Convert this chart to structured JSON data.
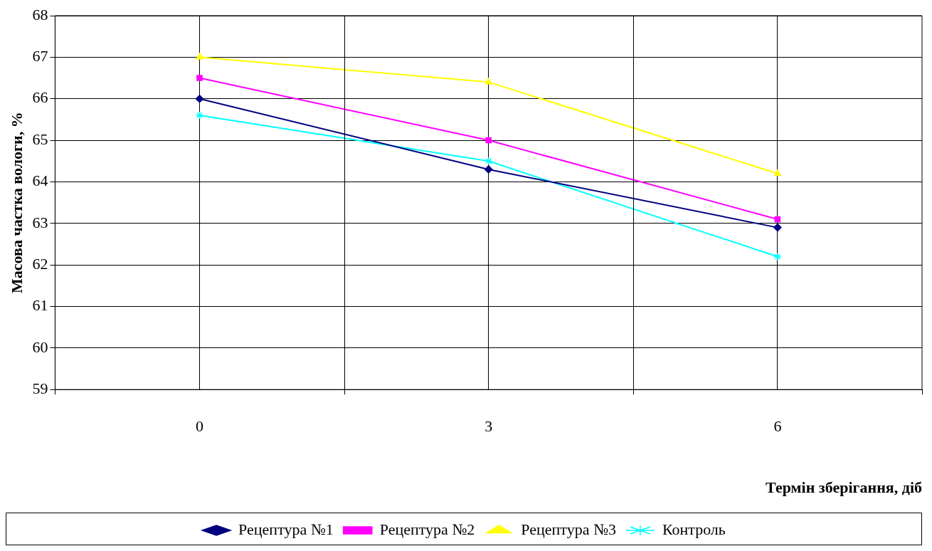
{
  "chart_data": {
    "type": "line",
    "xlabel": "Термін зберігання, діб",
    "ylabel": "Масова частка вологи, %",
    "categories": [
      "0",
      "3",
      "6"
    ],
    "series": [
      {
        "name": "Рецептура №1",
        "color": "#000080",
        "marker": "diamond",
        "values": [
          66.0,
          64.3,
          62.9
        ]
      },
      {
        "name": "Рецептура №2",
        "color": "#ff00ff",
        "marker": "square",
        "values": [
          66.5,
          65.0,
          63.1
        ]
      },
      {
        "name": "Рецептура №3",
        "color": "#ffff00",
        "marker": "triangle",
        "values": [
          67.0,
          66.4,
          64.2
        ]
      },
      {
        "name": "Контроль",
        "color": "#00ffff",
        "marker": "cross",
        "values": [
          65.6,
          64.5,
          62.2
        ]
      }
    ],
    "ylim": [
      59,
      68
    ],
    "yticks": [
      59,
      60,
      61,
      62,
      63,
      64,
      65,
      66,
      67,
      68
    ],
    "grid": true,
    "legend": "bottom",
    "line_style": "solid"
  }
}
